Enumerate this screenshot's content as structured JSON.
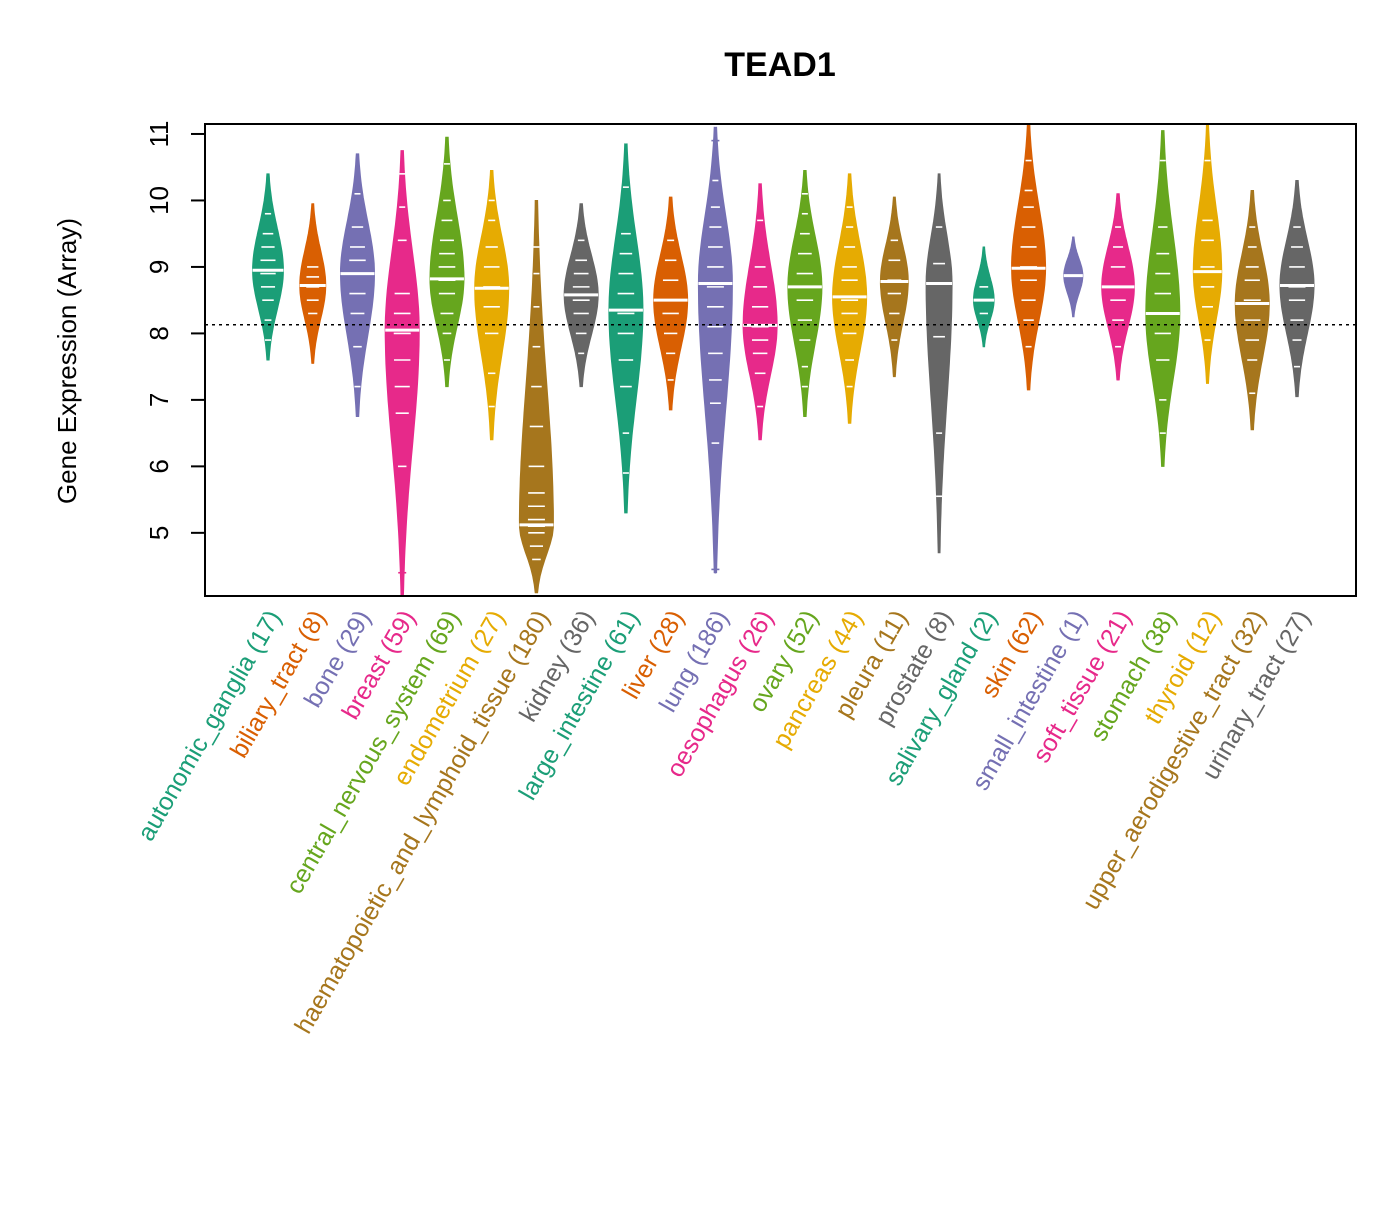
{
  "chart_data": {
    "type": "violin",
    "title": "TEAD1",
    "ylabel": "Gene Expression (Array)",
    "xlabel": "",
    "ylim": [
      4.05,
      11.15
    ],
    "yticks": [
      5,
      6,
      7,
      8,
      9,
      10,
      11
    ],
    "reference_line": 8.13,
    "grid": false,
    "legend": "none",
    "categories": [
      {
        "name": "autonomic_ganglia",
        "n": 17,
        "label": "autonomic_ganglia (17)",
        "color": "#1B9E77",
        "median": 8.95,
        "min": 7.6,
        "max": 10.4,
        "points": [
          7.9,
          8.2,
          8.5,
          8.7,
          8.9,
          9.1,
          9.3,
          9.5,
          9.8
        ]
      },
      {
        "name": "biliary_tract",
        "n": 8,
        "label": "biliary_tract (8)",
        "color": "#D95F02",
        "median": 8.72,
        "min": 7.55,
        "max": 9.95,
        "points": [
          8.3,
          8.5,
          8.7,
          8.85,
          9.0
        ]
      },
      {
        "name": "bone",
        "n": 29,
        "label": "bone (29)",
        "color": "#7570B3",
        "median": 8.9,
        "min": 6.75,
        "max": 10.7,
        "points": [
          7.2,
          7.8,
          8.3,
          8.6,
          8.9,
          9.1,
          9.3,
          9.6,
          10.1
        ]
      },
      {
        "name": "breast",
        "n": 59,
        "label": "breast (59)",
        "color": "#E7298A",
        "median": 8.05,
        "min": 4.05,
        "max": 10.75,
        "points": [
          4.4,
          6.0,
          6.8,
          7.2,
          7.6,
          8.0,
          8.3,
          8.6,
          9.4,
          9.9,
          10.4
        ]
      },
      {
        "name": "central_nervous_system",
        "n": 69,
        "label": "central_nervous_system (69)",
        "color": "#66A61E",
        "median": 8.82,
        "min": 7.2,
        "max": 10.95,
        "points": [
          7.6,
          8.0,
          8.3,
          8.6,
          8.8,
          9.0,
          9.2,
          9.4,
          9.7,
          10.0,
          10.55
        ]
      },
      {
        "name": "endometrium",
        "n": 27,
        "label": "endometrium (27)",
        "color": "#E6AB02",
        "median": 8.68,
        "min": 6.4,
        "max": 10.45,
        "points": [
          6.9,
          7.4,
          8.0,
          8.4,
          8.7,
          9.0,
          9.3,
          9.7,
          10.0
        ]
      },
      {
        "name": "haematopoietic_and_lymphoid_tissue",
        "n": 180,
        "label": "haematopoietic_and_lymphoid_tissue (180)",
        "color": "#A6761D",
        "median": 5.12,
        "min": 4.1,
        "max": 10.0,
        "points": [
          4.6,
          4.8,
          5.0,
          5.1,
          5.2,
          5.4,
          5.6,
          6.0,
          6.6,
          7.2,
          7.8,
          8.4,
          8.9,
          9.3
        ]
      },
      {
        "name": "kidney",
        "n": 36,
        "label": "kidney (36)",
        "color": "#666666",
        "median": 8.58,
        "min": 7.2,
        "max": 9.95,
        "points": [
          7.7,
          8.0,
          8.3,
          8.5,
          8.7,
          8.9,
          9.1,
          9.4
        ]
      },
      {
        "name": "large_intestine",
        "n": 61,
        "label": "large_intestine (61)",
        "color": "#1B9E77",
        "median": 8.35,
        "min": 5.3,
        "max": 10.85,
        "points": [
          5.9,
          6.5,
          7.2,
          7.6,
          8.0,
          8.3,
          8.6,
          8.9,
          9.2,
          9.5,
          10.2
        ]
      },
      {
        "name": "liver",
        "n": 28,
        "label": "liver (28)",
        "color": "#D95F02",
        "median": 8.5,
        "min": 6.85,
        "max": 10.05,
        "points": [
          7.3,
          7.7,
          8.0,
          8.3,
          8.5,
          8.8,
          9.1,
          9.4
        ]
      },
      {
        "name": "lung",
        "n": 186,
        "label": "lung (186)",
        "color": "#7570B3",
        "median": 8.75,
        "min": 4.4,
        "max": 11.1,
        "points": [
          4.45,
          6.35,
          6.95,
          7.3,
          7.7,
          8.1,
          8.4,
          8.7,
          9.0,
          9.3,
          9.6,
          9.9,
          10.3,
          10.9
        ]
      },
      {
        "name": "oesophagus",
        "n": 26,
        "label": "oesophagus (26)",
        "color": "#E7298A",
        "median": 8.12,
        "min": 6.4,
        "max": 10.25,
        "points": [
          6.9,
          7.4,
          7.7,
          7.9,
          8.1,
          8.4,
          8.7,
          9.0,
          9.7
        ]
      },
      {
        "name": "ovary",
        "n": 52,
        "label": "ovary (52)",
        "color": "#66A61E",
        "median": 8.7,
        "min": 6.75,
        "max": 10.45,
        "points": [
          7.2,
          7.5,
          7.9,
          8.2,
          8.5,
          8.7,
          8.9,
          9.2,
          9.5,
          9.8,
          10.1
        ]
      },
      {
        "name": "pancreas",
        "n": 44,
        "label": "pancreas (44)",
        "color": "#E6AB02",
        "median": 8.55,
        "min": 6.65,
        "max": 10.4,
        "points": [
          7.2,
          7.6,
          8.0,
          8.3,
          8.5,
          8.8,
          9.0,
          9.3,
          9.6,
          9.9
        ]
      },
      {
        "name": "pleura",
        "n": 11,
        "label": "pleura (11)",
        "color": "#A6761D",
        "median": 8.78,
        "min": 7.35,
        "max": 10.05,
        "points": [
          7.9,
          8.3,
          8.6,
          8.8,
          9.1,
          9.4
        ]
      },
      {
        "name": "prostate",
        "n": 8,
        "label": "prostate (8)",
        "color": "#666666",
        "median": 8.75,
        "min": 4.7,
        "max": 10.4,
        "points": [
          5.55,
          6.5,
          7.95,
          8.75,
          9.05,
          9.6
        ]
      },
      {
        "name": "salivary_gland",
        "n": 2,
        "label": "salivary_gland (2)",
        "color": "#1B9E77",
        "median": 8.5,
        "min": 7.8,
        "max": 9.3,
        "points": [
          8.3,
          8.7
        ]
      },
      {
        "name": "skin",
        "n": 62,
        "label": "skin (62)",
        "color": "#D95F02",
        "median": 8.98,
        "min": 7.15,
        "max": 11.15,
        "points": [
          7.8,
          8.2,
          8.5,
          8.8,
          9.0,
          9.3,
          9.6,
          9.9,
          10.15,
          10.6
        ]
      },
      {
        "name": "small_intestine",
        "n": 1,
        "label": "small_intestine (1)",
        "color": "#7570B3",
        "median": 8.87,
        "min": 8.25,
        "max": 9.45,
        "points": [
          8.87
        ]
      },
      {
        "name": "soft_tissue",
        "n": 21,
        "label": "soft_tissue (21)",
        "color": "#E7298A",
        "median": 8.7,
        "min": 7.3,
        "max": 10.1,
        "points": [
          7.8,
          8.2,
          8.5,
          8.7,
          9.0,
          9.3,
          9.6
        ]
      },
      {
        "name": "stomach",
        "n": 38,
        "label": "stomach (38)",
        "color": "#66A61E",
        "median": 8.3,
        "min": 6.0,
        "max": 11.05,
        "points": [
          6.5,
          7.0,
          7.6,
          8.0,
          8.3,
          8.6,
          8.9,
          9.2,
          9.6,
          10.6
        ]
      },
      {
        "name": "thyroid",
        "n": 12,
        "label": "thyroid (12)",
        "color": "#E6AB02",
        "median": 8.93,
        "min": 7.25,
        "max": 11.15,
        "points": [
          7.9,
          8.4,
          8.7,
          9.0,
          9.4,
          9.7,
          10.6
        ]
      },
      {
        "name": "upper_aerodigestive_tract",
        "n": 32,
        "label": "upper_aerodigestive_tract (32)",
        "color": "#A6761D",
        "median": 8.45,
        "min": 6.55,
        "max": 10.15,
        "points": [
          7.1,
          7.6,
          7.9,
          8.2,
          8.5,
          8.8,
          9.0,
          9.3,
          9.6
        ]
      },
      {
        "name": "urinary_tract",
        "n": 27,
        "label": "urinary_tract (27)",
        "color": "#666666",
        "median": 8.72,
        "min": 7.05,
        "max": 10.3,
        "points": [
          7.5,
          7.9,
          8.2,
          8.5,
          8.7,
          9.0,
          9.3,
          9.6
        ]
      }
    ]
  }
}
